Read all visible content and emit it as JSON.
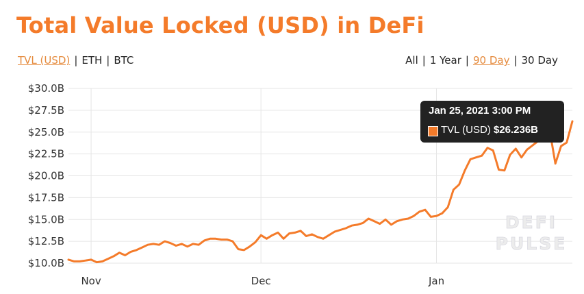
{
  "header": {
    "title": "Total Value Locked (USD) in DeFi"
  },
  "denomination_toggles": [
    {
      "label": "TVL (USD)",
      "active": true
    },
    {
      "label": "ETH",
      "active": false
    },
    {
      "label": "BTC",
      "active": false
    }
  ],
  "range_toggles": [
    {
      "label": "All",
      "active": false
    },
    {
      "label": "1 Year",
      "active": false
    },
    {
      "label": "90 Day",
      "active": true
    },
    {
      "label": "30 Day",
      "active": false
    }
  ],
  "separator": "|",
  "tooltip": {
    "date": "Jan 25, 2021 3:00 PM",
    "series_label": "TVL (USD)",
    "value_label": "$26.236B"
  },
  "watermark": {
    "line1": "DEFI",
    "line2": "PULSE"
  },
  "colors": {
    "accent": "#f47b2a",
    "grid": "#e5e5e5",
    "tooltip_bg": "#222222"
  },
  "chart_data": {
    "type": "line",
    "title": "Total Value Locked (USD) in DeFi",
    "xlabel": "",
    "ylabel": "",
    "x_ticks": [
      "Nov",
      "Dec",
      "Jan"
    ],
    "x_tick_dates": [
      "2020-11-01",
      "2020-12-01",
      "2021-01-01"
    ],
    "x_range": [
      "2020-10-28",
      "2021-01-25"
    ],
    "y_ticks": [
      "$10.0B",
      "$12.5B",
      "$15.0B",
      "$17.5B",
      "$20.0B",
      "$22.5B",
      "$25.0B",
      "$27.5B",
      "$30.0B"
    ],
    "ylim": [
      10,
      30
    ],
    "y_unit": "USD billions",
    "grid": true,
    "series": [
      {
        "name": "TVL (USD)",
        "color": "#f47b2a",
        "x": [
          "2020-10-28",
          "2020-10-29",
          "2020-10-30",
          "2020-10-31",
          "2020-11-01",
          "2020-11-02",
          "2020-11-03",
          "2020-11-04",
          "2020-11-05",
          "2020-11-06",
          "2020-11-07",
          "2020-11-08",
          "2020-11-09",
          "2020-11-10",
          "2020-11-11",
          "2020-11-12",
          "2020-11-13",
          "2020-11-14",
          "2020-11-15",
          "2020-11-16",
          "2020-11-17",
          "2020-11-18",
          "2020-11-19",
          "2020-11-20",
          "2020-11-21",
          "2020-11-22",
          "2020-11-23",
          "2020-11-24",
          "2020-11-25",
          "2020-11-26",
          "2020-11-27",
          "2020-11-28",
          "2020-11-29",
          "2020-11-30",
          "2020-12-01",
          "2020-12-02",
          "2020-12-03",
          "2020-12-04",
          "2020-12-05",
          "2020-12-06",
          "2020-12-07",
          "2020-12-08",
          "2020-12-09",
          "2020-12-10",
          "2020-12-11",
          "2020-12-12",
          "2020-12-13",
          "2020-12-14",
          "2020-12-15",
          "2020-12-16",
          "2020-12-17",
          "2020-12-18",
          "2020-12-19",
          "2020-12-20",
          "2020-12-21",
          "2020-12-22",
          "2020-12-23",
          "2020-12-24",
          "2020-12-25",
          "2020-12-26",
          "2020-12-27",
          "2020-12-28",
          "2020-12-29",
          "2020-12-30",
          "2020-12-31",
          "2021-01-01",
          "2021-01-02",
          "2021-01-03",
          "2021-01-04",
          "2021-01-05",
          "2021-01-06",
          "2021-01-07",
          "2021-01-08",
          "2021-01-09",
          "2021-01-10",
          "2021-01-11",
          "2021-01-12",
          "2021-01-13",
          "2021-01-14",
          "2021-01-15",
          "2021-01-16",
          "2021-01-17",
          "2021-01-18",
          "2021-01-19",
          "2021-01-20",
          "2021-01-21",
          "2021-01-22",
          "2021-01-23",
          "2021-01-24",
          "2021-01-25"
        ],
        "values": [
          10.4,
          10.2,
          10.2,
          10.3,
          10.4,
          10.1,
          10.2,
          10.5,
          10.8,
          11.2,
          10.9,
          11.3,
          11.5,
          11.8,
          12.1,
          12.2,
          12.1,
          12.5,
          12.3,
          12.0,
          12.2,
          11.9,
          12.2,
          12.1,
          12.6,
          12.8,
          12.8,
          12.7,
          12.7,
          12.5,
          11.6,
          11.5,
          11.9,
          12.4,
          13.2,
          12.8,
          13.2,
          13.5,
          12.8,
          13.4,
          13.5,
          13.7,
          13.1,
          13.3,
          13.0,
          12.8,
          13.2,
          13.6,
          13.8,
          14.0,
          14.3,
          14.4,
          14.6,
          15.1,
          14.8,
          14.5,
          15.0,
          14.4,
          14.8,
          15.0,
          15.1,
          15.4,
          15.9,
          16.1,
          15.3,
          15.4,
          15.7,
          16.4,
          18.4,
          19.0,
          20.6,
          21.9,
          22.1,
          22.3,
          23.2,
          22.9,
          20.7,
          20.6,
          22.4,
          23.1,
          22.1,
          23.0,
          23.5,
          24.0,
          24.6,
          25.2,
          21.4,
          23.4,
          23.8,
          26.236
        ]
      }
    ],
    "annotations": [
      {
        "type": "tooltip",
        "x": "2021-01-25",
        "label": "Jan 25, 2021 3:00 PM",
        "series": "TVL (USD)",
        "value": "$26.236B"
      }
    ]
  }
}
